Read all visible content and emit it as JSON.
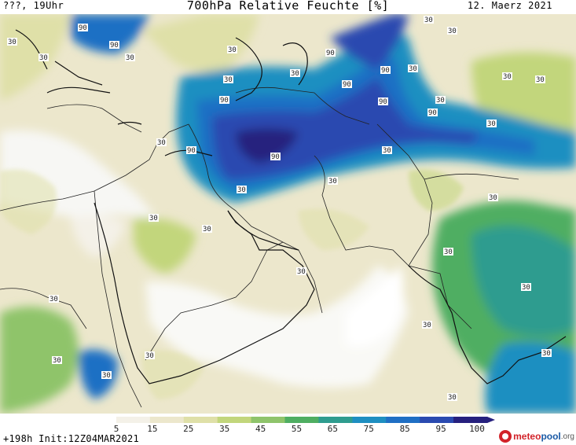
{
  "header": {
    "run_label": "???, 19Uhr",
    "title": "700hPa Relative Feuchte [%]",
    "valid_date": "12. Maerz 2021"
  },
  "footer": {
    "init_label": "+198h Init:12Z04MAR2021"
  },
  "logo": {
    "part_a": "meteo",
    "part_b": "pool",
    "part_c": ".org"
  },
  "colorbar": {
    "tick_labels": [
      "5",
      "15",
      "25",
      "35",
      "45",
      "55",
      "65",
      "75",
      "85",
      "95",
      "100"
    ],
    "colors": [
      "#ffffff",
      "#f4f1e8",
      "#ece7cc",
      "#dfe0a8",
      "#c2d67c",
      "#8fc46b",
      "#4fae62",
      "#2f9c8f",
      "#1e8fc1",
      "#1f6fc4",
      "#2a4ab0",
      "#26207e"
    ]
  },
  "contour_labels": [
    "30",
    "30",
    "30",
    "30",
    "30",
    "30",
    "30",
    "30",
    "30",
    "30",
    "30",
    "30",
    "30",
    "30",
    "30",
    "30",
    "30",
    "30",
    "30",
    "30",
    "30",
    "30",
    "30",
    "30",
    "30",
    "30",
    "30",
    "30",
    "30",
    "30",
    "90",
    "90",
    "90",
    "90",
    "90",
    "90",
    "90",
    "90",
    "90",
    "90"
  ]
}
